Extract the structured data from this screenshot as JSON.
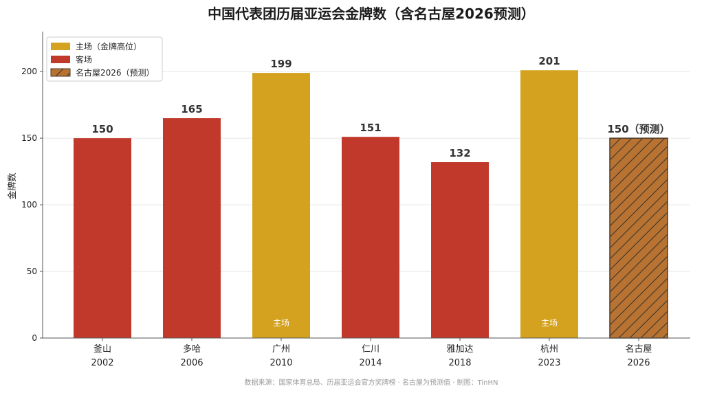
{
  "chart_data": {
    "type": "bar",
    "title": "中国代表团历届亚运会金牌数（含名古屋2026预测）",
    "ylabel": "金牌数",
    "ylim": [
      0,
      230
    ],
    "yticks": [
      0,
      50,
      100,
      150,
      200
    ],
    "grid": "horizontal",
    "legend_position": "top-left",
    "categories": [
      {
        "city": "釜山",
        "year": "2002"
      },
      {
        "city": "多哈",
        "year": "2006"
      },
      {
        "city": "广州",
        "year": "2010"
      },
      {
        "city": "仁川",
        "year": "2014"
      },
      {
        "city": "雅加达",
        "year": "2018"
      },
      {
        "city": "杭州",
        "year": "2023"
      },
      {
        "city": "名古屋",
        "year": "2026"
      }
    ],
    "values": [
      150,
      165,
      199,
      151,
      132,
      201,
      150
    ],
    "types": [
      "away",
      "away",
      "home",
      "away",
      "away",
      "home",
      "forecast"
    ],
    "value_labels": [
      "150",
      "165",
      "199",
      "151",
      "132",
      "201",
      "150（预测）"
    ],
    "inside_labels": [
      "",
      "",
      "主场",
      "",
      "",
      "主场",
      ""
    ],
    "legend": [
      {
        "key": "home",
        "label": "主场（金牌高位）"
      },
      {
        "key": "away",
        "label": "客场"
      },
      {
        "key": "forecast",
        "label": "名古屋2026（预测）"
      }
    ],
    "colors": {
      "home": "#D4A21F",
      "away": "#C0392B",
      "forecast": "#B87333",
      "forecast_edge": "#4a3a2a"
    },
    "source": "数据来源：国家体育总局、历届亚运会官方奖牌榜 · 名古屋为预测值 · 制图：TinHN"
  }
}
